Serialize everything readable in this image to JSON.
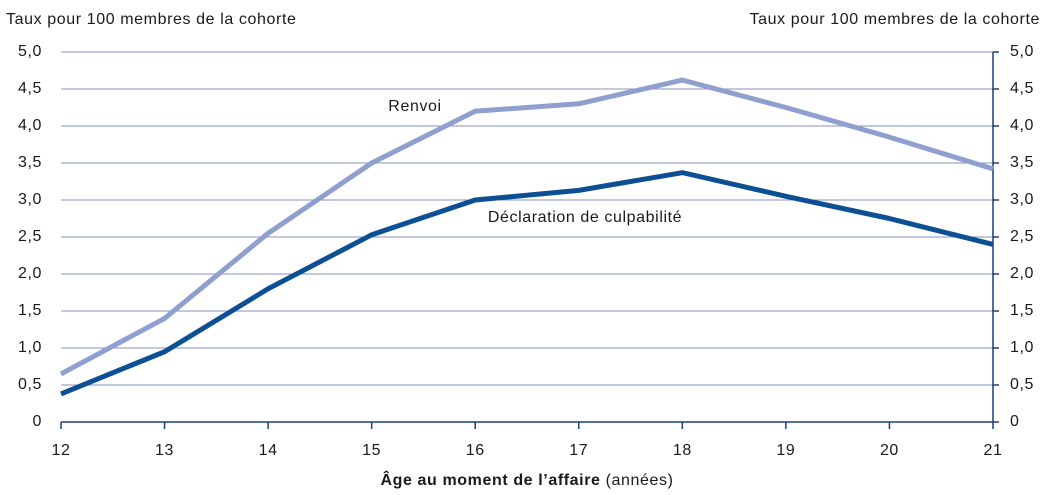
{
  "chart_data": {
    "type": "line",
    "ylabel": "Taux pour 100 membres de la cohorte",
    "y2label": "Taux pour 100 membres de la cohorte",
    "xlabel": "Âge au moment de l’affaire",
    "xlabel_unit": "(années)",
    "x": [
      12,
      13,
      14,
      15,
      16,
      17,
      18,
      19,
      20,
      21
    ],
    "xlim": [
      12,
      21
    ],
    "xticks": [
      12,
      13,
      14,
      15,
      16,
      17,
      18,
      19,
      20,
      21
    ],
    "ylim": [
      0,
      5
    ],
    "yticks": [
      0,
      {
        "value": 0.5,
        "label": "0,5"
      },
      {
        "value": 1,
        "label": "1,0"
      },
      {
        "value": 1.5,
        "label": "1,5"
      },
      {
        "value": 2,
        "label": "2,0"
      },
      {
        "value": 2.5,
        "label": "2,5"
      },
      {
        "value": 3,
        "label": "3,0"
      },
      {
        "value": 3.5,
        "label": "3,5"
      },
      {
        "value": 4,
        "label": "4,0"
      },
      {
        "value": 4.5,
        "label": "4,5"
      },
      {
        "value": 5,
        "label": "5,0"
      }
    ],
    "y2lim": [
      0,
      5
    ],
    "y2ticks": [
      0,
      {
        "value": 0.5,
        "label": "0,5"
      },
      {
        "value": 1,
        "label": "1,0"
      },
      {
        "value": 1.5,
        "label": "1,5"
      },
      {
        "value": 2,
        "label": "2,0"
      },
      {
        "value": 2.5,
        "label": "2,5"
      },
      {
        "value": 3,
        "label": "3,0"
      },
      {
        "value": 3.5,
        "label": "3,5"
      },
      {
        "value": 4,
        "label": "4,0"
      },
      {
        "value": 4.5,
        "label": "4,5"
      },
      {
        "value": 5,
        "label": "5,0"
      }
    ],
    "grid": true,
    "series": [
      {
        "name": "Renvoi",
        "color": "#8f9fd0",
        "values": [
          0.65,
          1.4,
          2.55,
          3.5,
          4.2,
          4.3,
          4.62,
          4.25,
          3.85,
          3.42
        ]
      },
      {
        "name": "Déclaration de culpabilité",
        "color": "#0d4f94",
        "values": [
          0.38,
          0.95,
          1.8,
          2.53,
          3.0,
          3.13,
          3.37,
          3.05,
          2.75,
          2.4
        ]
      }
    ]
  }
}
